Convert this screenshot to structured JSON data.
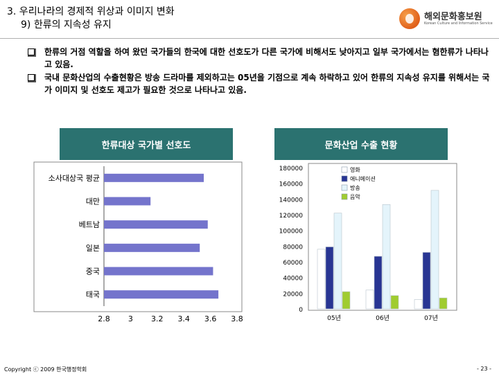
{
  "header": {
    "title_line1": "3. 우리나라의 경제적 위상과 이미지 변화",
    "title_line2": "9) 한류의 지속성 유지",
    "logo_name": "해외문화홍보원",
    "logo_sub": "Korean Culture and Information Service",
    "logo_color": "#e8702a"
  },
  "bullets": [
    "한류의 거점 역할을 하여 왔던 국가들의 한국에 대한 선호도가 다른 국가에 비해서도 낮아지고 일부 국가에서는 혐한류가 나타나고 있음.",
    "국내 문화산업의 수출현황은 방송 드라마를 제외하고는 05년을 기점으로 계속 하락하고 있어 한류의 지속성 유지를 위해서는 국가 이미지 및 선호도 제고가 필요한 것으로 나타나고 있음."
  ],
  "panels": {
    "left_title": "한류대상 국가별 선호도",
    "right_title": "문화산업 수출 현황",
    "accent": "#2b7270"
  },
  "footer": {
    "copyright": "Copyright ⓒ 2009 한국행정학회",
    "page": "- 23 -"
  },
  "chart_data": [
    {
      "type": "bar",
      "orientation": "horizontal",
      "categories": [
        "소사대상국 평균",
        "대만",
        "베트남",
        "일본",
        "중국",
        "태국"
      ],
      "values": [
        3.55,
        3.15,
        3.58,
        3.52,
        3.62,
        3.66
      ],
      "xlim": [
        2.8,
        3.8
      ],
      "xticks": [
        "2.8",
        "3",
        "3.2",
        "3.4",
        "3.6",
        "3.8"
      ],
      "bar_color": "#7474cc",
      "grid": false
    },
    {
      "type": "bar",
      "categories": [
        "05년",
        "06년",
        "07년"
      ],
      "series": [
        {
          "name": "영화",
          "values": [
            76000,
            24000,
            12000
          ],
          "color": "#ffffff"
        },
        {
          "name": "애니메이션",
          "values": [
            79000,
            67000,
            72000
          ],
          "color": "#283593"
        },
        {
          "name": "방송",
          "values": [
            122000,
            133000,
            151000
          ],
          "color": "#e4f4fb"
        },
        {
          "name": "음악",
          "values": [
            22000,
            17000,
            14000
          ],
          "color": "#a0cc30"
        }
      ],
      "ylim": [
        0,
        180000
      ],
      "yticks": [
        "0",
        "20000",
        "40000",
        "60000",
        "80000",
        "100000",
        "120000",
        "140000",
        "160000",
        "180000"
      ],
      "legend": "top-left",
      "grid": false
    }
  ]
}
